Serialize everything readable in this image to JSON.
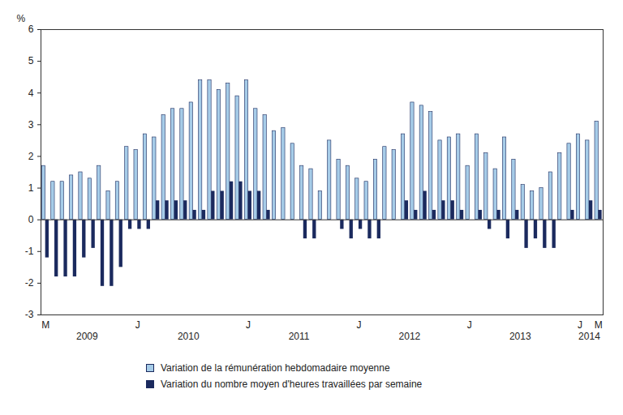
{
  "chart_data": {
    "type": "bar",
    "y_label": "%",
    "categories": [
      "M",
      null,
      null,
      null,
      null,
      null,
      null,
      null,
      null,
      null,
      "J",
      null,
      null,
      null,
      null,
      null,
      null,
      null,
      null,
      null,
      null,
      null,
      "J",
      null,
      null,
      null,
      null,
      null,
      null,
      null,
      null,
      null,
      null,
      null,
      "J",
      null,
      null,
      null,
      null,
      null,
      null,
      null,
      null,
      null,
      null,
      null,
      "J",
      null,
      null,
      null,
      null,
      null,
      null,
      null,
      null,
      null,
      null,
      null,
      "J",
      null,
      "M"
    ],
    "groups": [
      {
        "label": "2009",
        "count": 10
      },
      {
        "label": "2010",
        "count": 12
      },
      {
        "label": "2011",
        "count": 12
      },
      {
        "label": "2012",
        "count": 12
      },
      {
        "label": "2013",
        "count": 12
      },
      {
        "label": "2014",
        "count": 3
      }
    ],
    "series": [
      {
        "name": "Variation de la rémunération hebdomadaire moyenne",
        "color": "#a6cce8",
        "values": [
          1.7,
          1.2,
          1.2,
          1.4,
          1.5,
          1.3,
          1.7,
          0.9,
          1.2,
          2.3,
          2.2,
          2.7,
          2.6,
          3.3,
          3.5,
          3.5,
          3.7,
          4.4,
          4.4,
          4.1,
          4.3,
          3.9,
          4.4,
          3.5,
          3.3,
          2.8,
          2.9,
          2.4,
          1.7,
          1.6,
          0.9,
          2.5,
          1.9,
          1.7,
          1.3,
          1.2,
          1.9,
          2.3,
          2.2,
          2.7,
          3.7,
          3.6,
          3.4,
          2.5,
          2.6,
          2.7,
          1.7,
          2.7,
          2.1,
          1.6,
          2.6,
          1.9,
          1.1,
          0.9,
          1.0,
          1.5,
          2.1,
          2.4,
          2.7,
          2.5,
          3.1
        ]
      },
      {
        "name": "Variation du nombre moyen d'heures travaillées par semaine",
        "color": "#1b2a5e",
        "values": [
          -1.2,
          -1.8,
          -1.8,
          -1.8,
          -1.2,
          -0.9,
          -2.1,
          -2.1,
          -1.5,
          -0.3,
          -0.3,
          -0.3,
          0.6,
          0.6,
          0.6,
          0.6,
          0.3,
          0.3,
          0.9,
          0.9,
          1.2,
          1.2,
          0.9,
          0.9,
          0.3,
          0,
          0,
          0,
          -0.6,
          -0.6,
          0,
          0,
          -0.3,
          -0.6,
          -0.3,
          -0.6,
          -0.6,
          0,
          0,
          0.6,
          0.3,
          0.9,
          0.3,
          0.6,
          0.6,
          0.3,
          0,
          0.3,
          -0.3,
          0.3,
          -0.6,
          0.3,
          -0.9,
          -0.6,
          -0.9,
          -0.9,
          0,
          0.3,
          0,
          0.6,
          0.3
        ]
      }
    ],
    "ylim": [
      -3,
      6
    ],
    "yticks": [
      -3,
      -2,
      -1,
      0,
      1,
      2,
      3,
      4,
      5,
      6
    ],
    "grid": false,
    "legend": "bottom"
  }
}
